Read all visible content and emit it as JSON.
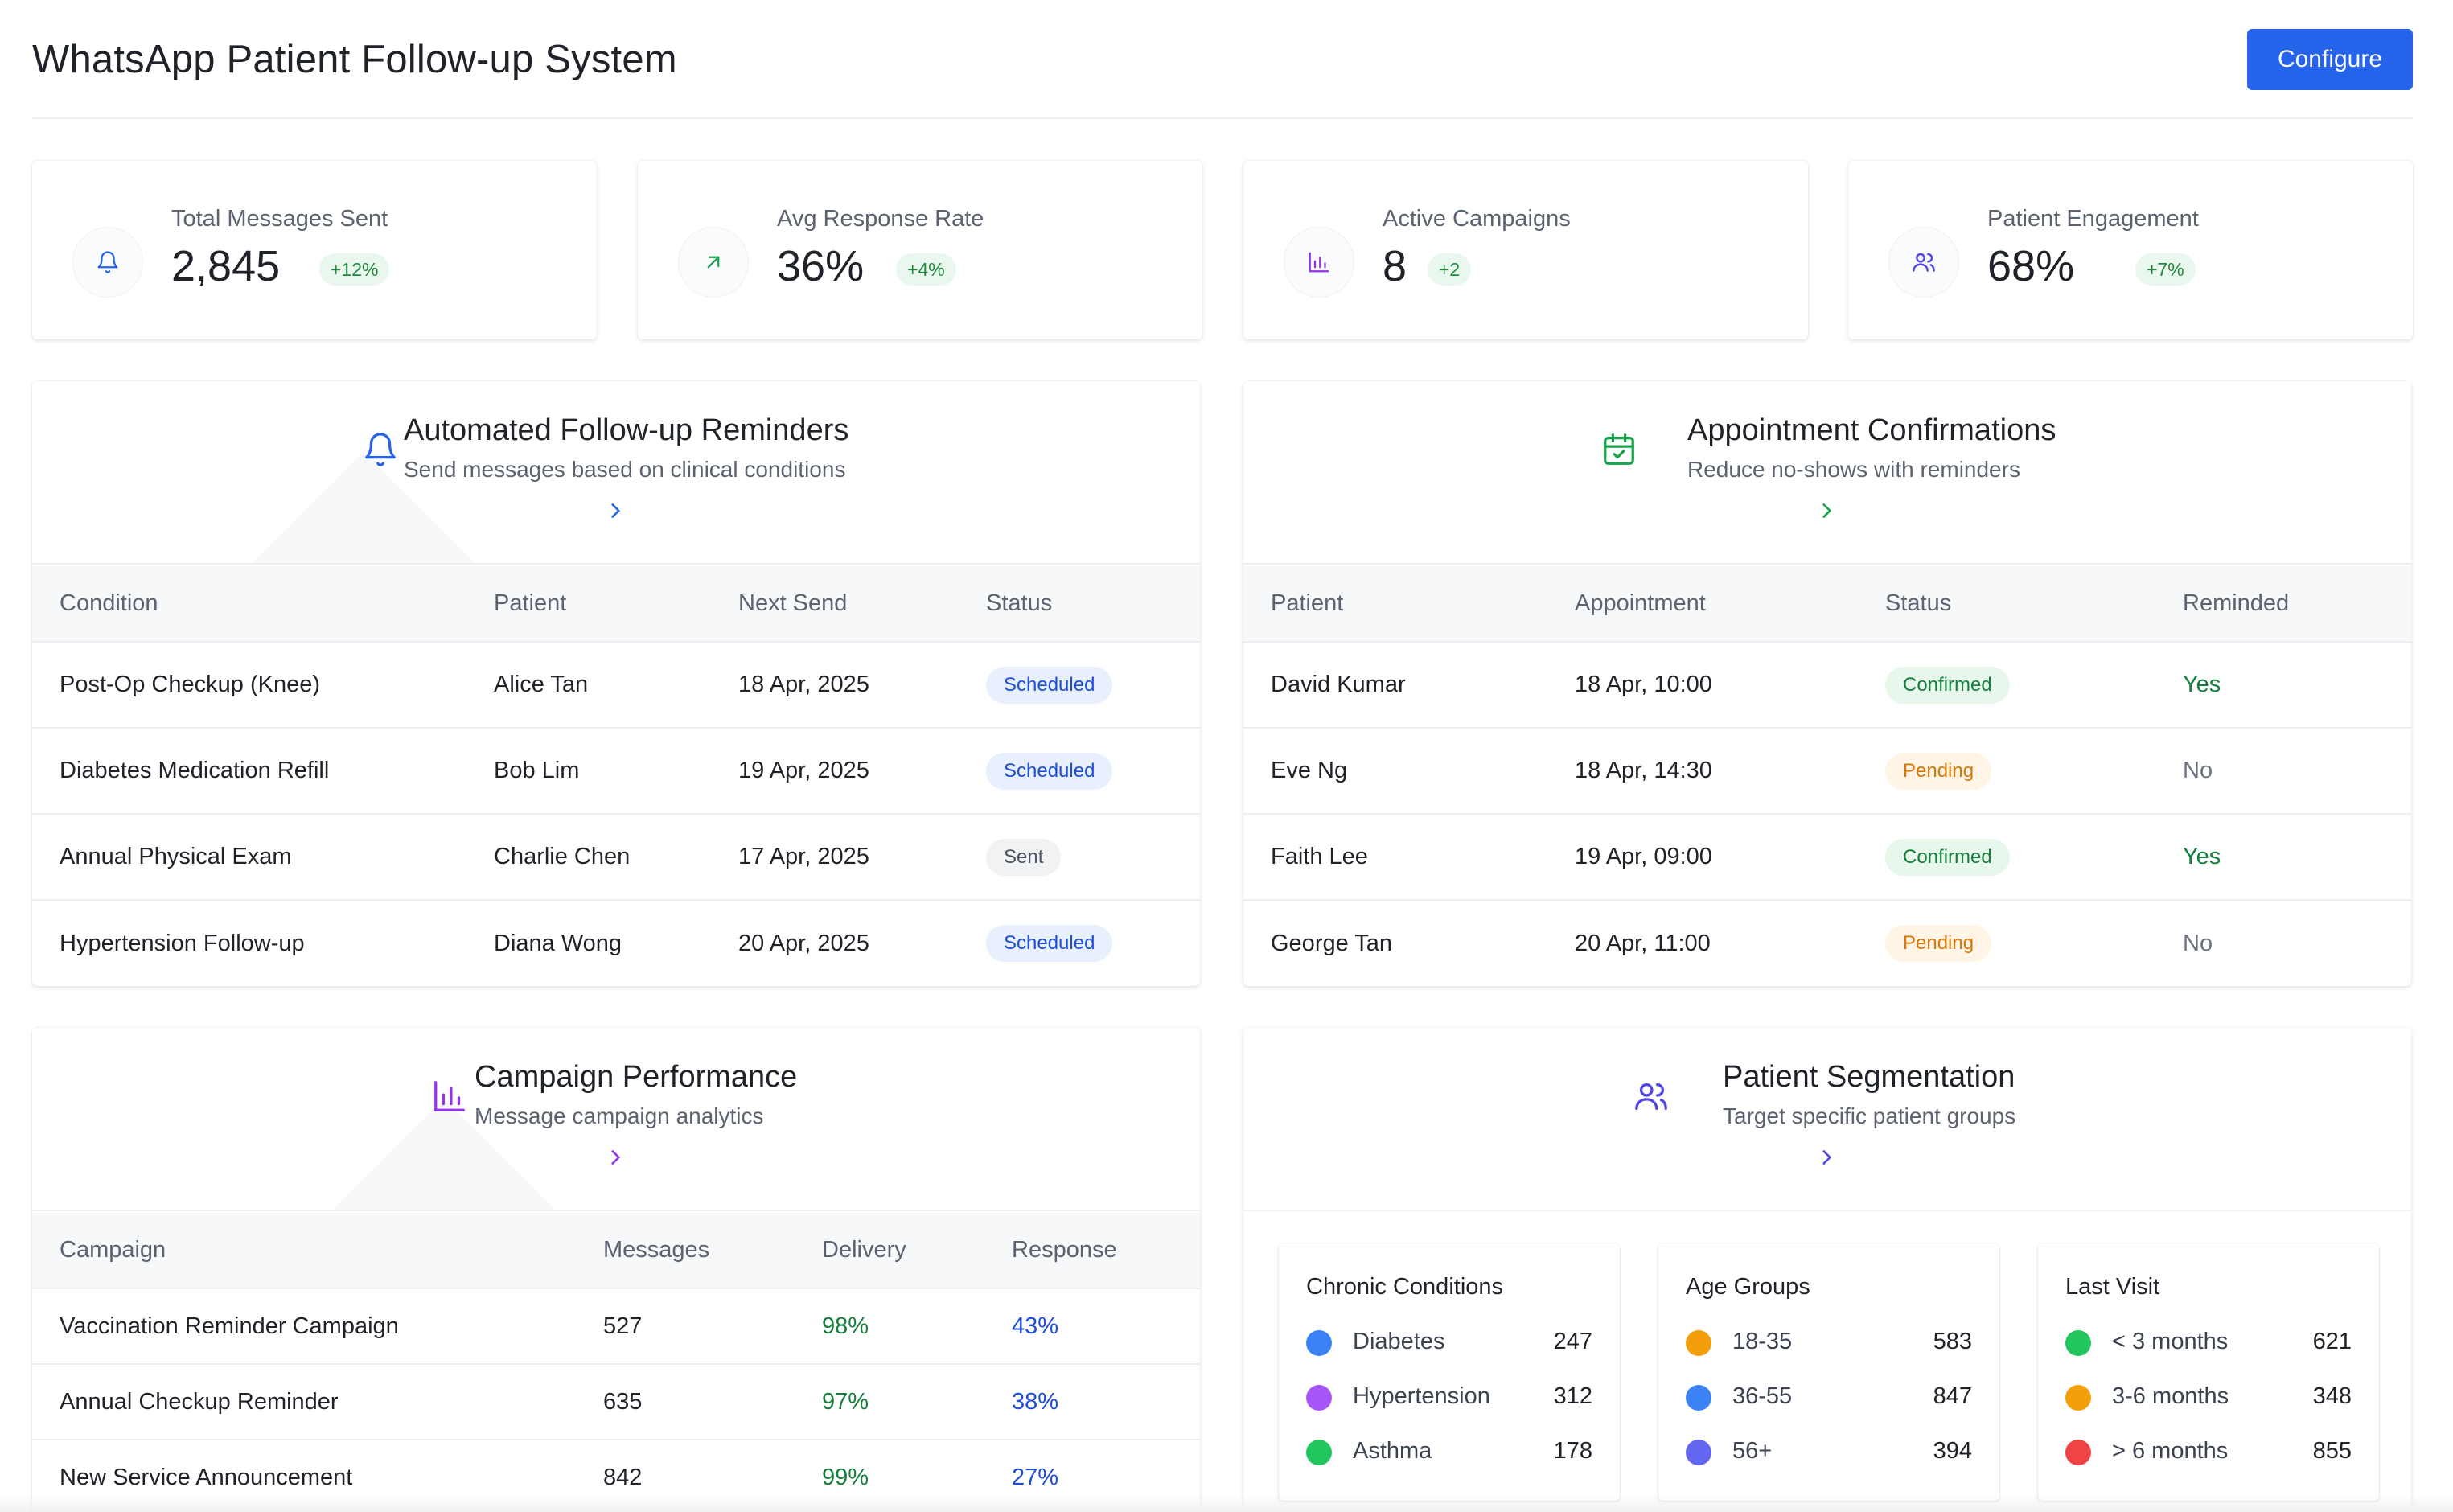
{
  "header": {
    "title": "WhatsApp Patient Follow-up System",
    "configure_label": "Configure"
  },
  "colors": {
    "accent": "#2563eb",
    "success": "#15803d",
    "warning": "#d97706",
    "purple": "#9333ea"
  },
  "kpis": [
    {
      "label": "Total Messages Sent",
      "value": "2,845",
      "delta": "+12%",
      "icon": "bell-icon"
    },
    {
      "label": "Avg Response Rate",
      "value": "36%",
      "delta": "+4%",
      "icon": "trending-up-icon"
    },
    {
      "label": "Active Campaigns",
      "value": "8",
      "delta": "+2",
      "icon": "bar-chart-icon"
    },
    {
      "label": "Patient Engagement",
      "value": "68%",
      "delta": "+7%",
      "icon": "users-icon"
    }
  ],
  "reminders": {
    "title": "Automated Follow-up Reminders",
    "subtitle": "Send messages based on clinical conditions",
    "icon": "bell-icon",
    "columns": [
      "Condition",
      "Patient",
      "Next Send",
      "Status"
    ],
    "rows": [
      {
        "condition": "Post-Op Checkup (Knee)",
        "patient": "Alice Tan",
        "next_send": "18 Apr, 2025",
        "status": "Scheduled"
      },
      {
        "condition": "Diabetes Medication Refill",
        "patient": "Bob Lim",
        "next_send": "19 Apr, 2025",
        "status": "Scheduled"
      },
      {
        "condition": "Annual Physical Exam",
        "patient": "Charlie Chen",
        "next_send": "17 Apr, 2025",
        "status": "Sent"
      },
      {
        "condition": "Hypertension Follow-up",
        "patient": "Diana Wong",
        "next_send": "20 Apr, 2025",
        "status": "Scheduled"
      }
    ]
  },
  "appointments": {
    "title": "Appointment Confirmations",
    "subtitle": "Reduce no-shows with reminders",
    "icon": "calendar-check-icon",
    "columns": [
      "Patient",
      "Appointment",
      "Status",
      "Reminded"
    ],
    "rows": [
      {
        "patient": "David Kumar",
        "appointment": "18 Apr, 10:00",
        "status": "Confirmed",
        "reminded": "Yes"
      },
      {
        "patient": "Eve Ng",
        "appointment": "18 Apr, 14:30",
        "status": "Pending",
        "reminded": "No"
      },
      {
        "patient": "Faith Lee",
        "appointment": "19 Apr, 09:00",
        "status": "Confirmed",
        "reminded": "Yes"
      },
      {
        "patient": "George Tan",
        "appointment": "20 Apr, 11:00",
        "status": "Pending",
        "reminded": "No"
      }
    ]
  },
  "campaigns": {
    "title": "Campaign Performance",
    "subtitle": "Message campaign analytics",
    "icon": "bar-chart-icon",
    "columns": [
      "Campaign",
      "Messages",
      "Delivery",
      "Response"
    ],
    "rows": [
      {
        "campaign": "Vaccination Reminder Campaign",
        "messages": "527",
        "delivery": "98%",
        "response": "43%"
      },
      {
        "campaign": "Annual Checkup Reminder",
        "messages": "635",
        "delivery": "97%",
        "response": "38%"
      },
      {
        "campaign": "New Service Announcement",
        "messages": "842",
        "delivery": "99%",
        "response": "27%"
      }
    ]
  },
  "segmentation": {
    "title": "Patient Segmentation",
    "subtitle": "Target specific patient groups",
    "icon": "users-icon",
    "groups": [
      {
        "title": "Chronic Conditions",
        "items": [
          {
            "label": "Diabetes",
            "count": "247",
            "color": "#3b82f6"
          },
          {
            "label": "Hypertension",
            "count": "312",
            "color": "#a855f7"
          },
          {
            "label": "Asthma",
            "count": "178",
            "color": "#22c55e"
          }
        ]
      },
      {
        "title": "Age Groups",
        "items": [
          {
            "label": "18-35",
            "count": "583",
            "color": "#f59e0b"
          },
          {
            "label": "36-55",
            "count": "847",
            "color": "#3b82f6"
          },
          {
            "label": "56+",
            "count": "394",
            "color": "#6366f1"
          }
        ]
      },
      {
        "title": "Last Visit",
        "items": [
          {
            "label": "< 3 months",
            "count": "621",
            "color": "#22c55e"
          },
          {
            "label": "3-6 months",
            "count": "348",
            "color": "#f59e0b"
          },
          {
            "label": "> 6 months",
            "count": "855",
            "color": "#ef4444"
          }
        ]
      }
    ]
  }
}
